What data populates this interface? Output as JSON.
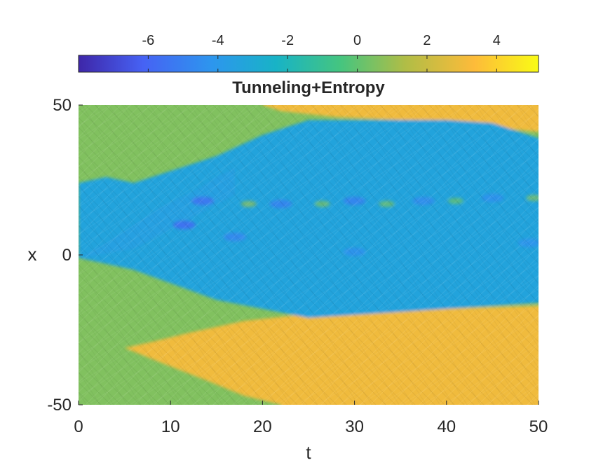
{
  "chart_data": {
    "type": "heatmap",
    "title": "Tunneling+Entropy",
    "xlabel": "t",
    "ylabel": "x",
    "xlim": [
      0,
      50
    ],
    "ylim": [
      -50,
      50
    ],
    "x_ticks": [
      {
        "value": 0,
        "label": "0"
      },
      {
        "value": 10,
        "label": "10"
      },
      {
        "value": 20,
        "label": "20"
      },
      {
        "value": 30,
        "label": "30"
      },
      {
        "value": 40,
        "label": "40"
      },
      {
        "value": 50,
        "label": "50"
      }
    ],
    "y_ticks": [
      {
        "value": 50,
        "label": "50"
      },
      {
        "value": 0,
        "label": "0"
      },
      {
        "value": -50,
        "label": "-50"
      }
    ],
    "colorbar": {
      "location": "top",
      "colormap": "parula",
      "range": [
        -8,
        5.2
      ],
      "ticks": [
        {
          "value": -6,
          "label": "-6"
        },
        {
          "value": -4,
          "label": "-4"
        },
        {
          "value": -2,
          "label": "-2"
        },
        {
          "value": 0,
          "label": "0"
        },
        {
          "value": 2,
          "label": "2"
        },
        {
          "value": 4,
          "label": "4"
        }
      ]
    },
    "colormap_stops": [
      "#3e26a8",
      "#4662f4",
      "#2d96ee",
      "#18b3c6",
      "#45c57f",
      "#b0bd46",
      "#fdbb3a",
      "#f9fb15"
    ],
    "field": {
      "background_value": 0.6,
      "blue_region": {
        "value": -3.4,
        "upper_boundary": [
          [
            0,
            24
          ],
          [
            3,
            26
          ],
          [
            6,
            24
          ],
          [
            15,
            33
          ],
          [
            20,
            40
          ],
          [
            25,
            45
          ],
          [
            30,
            45
          ],
          [
            40,
            45
          ],
          [
            45,
            44
          ],
          [
            50,
            39
          ]
        ],
        "lower_boundary": [
          [
            0,
            -1
          ],
          [
            3,
            -3
          ],
          [
            6,
            -5
          ],
          [
            15,
            -15
          ],
          [
            25,
            -21
          ],
          [
            30,
            -20
          ],
          [
            40,
            -18
          ],
          [
            50,
            -16
          ]
        ],
        "left_tip": [
          [
            0,
            -1
          ],
          [
            3,
            4
          ],
          [
            6,
            10
          ],
          [
            9,
            16
          ],
          [
            13,
            22
          ],
          [
            15,
            26
          ],
          [
            17,
            29
          ]
        ]
      },
      "upper_orange_region": {
        "value": 3.0,
        "boundary": [
          [
            20,
            50
          ],
          [
            22,
            48
          ],
          [
            28,
            46
          ],
          [
            35,
            45
          ],
          [
            42,
            44
          ],
          [
            47,
            42
          ],
          [
            50,
            41
          ]
        ]
      },
      "lower_orange_region": {
        "value": 3.0,
        "wedge_tip": [
          4.5,
          -31
        ],
        "top_boundary": [
          [
            5,
            -31
          ],
          [
            8,
            -29
          ],
          [
            12,
            -26
          ],
          [
            18,
            -22
          ],
          [
            24,
            -20
          ],
          [
            30,
            -19
          ],
          [
            40,
            -18
          ],
          [
            50,
            -17
          ]
        ],
        "bottom_boundary": [
          [
            5,
            -31
          ],
          [
            9,
            -36
          ],
          [
            14,
            -42
          ],
          [
            18,
            -47
          ],
          [
            22,
            -50
          ]
        ]
      },
      "dark_spots": [
        {
          "t": 13.5,
          "x": 18,
          "value": -5.5
        },
        {
          "t": 11.5,
          "x": 10,
          "value": -5.8
        },
        {
          "t": 22,
          "x": 17,
          "value": -5.0
        },
        {
          "t": 30,
          "x": 18,
          "value": -5.0
        },
        {
          "t": 37.5,
          "x": 18,
          "value": -4.6
        },
        {
          "t": 45,
          "x": 19,
          "value": -4.4
        },
        {
          "t": 17,
          "x": 6,
          "value": -4.8
        },
        {
          "t": 49,
          "x": 4,
          "value": -4.3
        },
        {
          "t": 30,
          "x": 1,
          "value": -4.4
        }
      ],
      "bright_spots": [
        {
          "t": 18.5,
          "x": 17,
          "value": 0.8
        },
        {
          "t": 26.5,
          "x": 17,
          "value": 0.5
        },
        {
          "t": 33.5,
          "x": 17,
          "value": 0.4
        },
        {
          "t": 41,
          "x": 18,
          "value": 0.2
        },
        {
          "t": 49.5,
          "x": 19,
          "value": 0.6
        }
      ]
    }
  }
}
